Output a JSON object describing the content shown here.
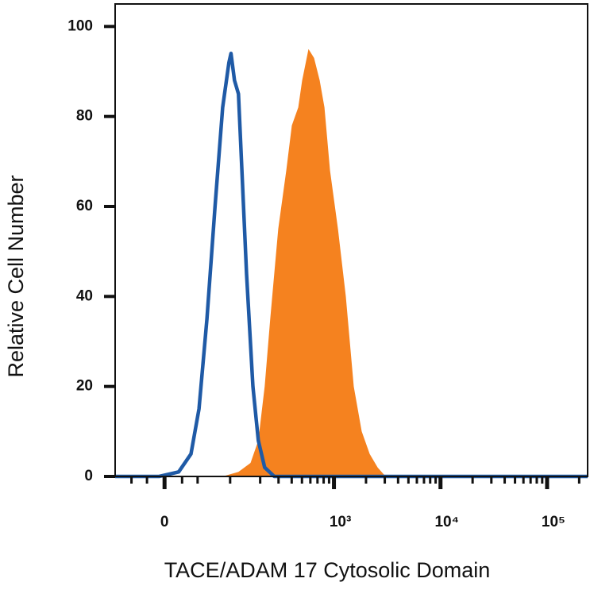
{
  "chart_data": {
    "type": "histogram-overlay",
    "xlabel": "TACE/ADAM 17 Cytosolic Domain",
    "ylabel": "Relative Cell Number",
    "xscale": "biexponential",
    "xlim": [
      -66,
      240000
    ],
    "xticks": [
      0,
      {
        "value": 1000,
        "label": "10³"
      },
      {
        "value": 10000,
        "label": "10⁴"
      },
      {
        "value": 100000,
        "label": "10⁵"
      }
    ],
    "xminorticks": [
      -40,
      -20,
      20,
      40,
      100,
      200,
      300,
      400,
      500,
      600,
      700,
      800,
      900,
      2000,
      3000,
      4000,
      5000,
      6000,
      7000,
      8000,
      9000,
      20000,
      30000,
      40000,
      50000,
      60000,
      70000,
      80000,
      90000,
      200000
    ],
    "ylim": [
      0,
      105
    ],
    "yticks": [
      0,
      20,
      40,
      60,
      80,
      100
    ],
    "series": [
      {
        "style": "area",
        "color": "#f5821f",
        "x": [
          83,
          122,
          161,
          192,
          221,
          250,
          298,
          355,
          401,
          461,
          502,
          576,
          650,
          734,
          814,
          918,
          1090,
          1293,
          1535,
          1823,
          2166,
          2573,
          3056
        ],
        "values": [
          0,
          1,
          3,
          8,
          20,
          35,
          55,
          68,
          78,
          82,
          88,
          95,
          93,
          88,
          82,
          68,
          55,
          40,
          20,
          10,
          5,
          2,
          0
        ]
      },
      {
        "style": "line",
        "color": "#1f5aa6",
        "x": [
          -66,
          -6,
          16,
          31,
          42,
          54,
          68,
          83,
          97,
          102,
          111,
          122,
          134,
          147,
          170,
          192,
          221,
          273,
          240000
        ],
        "values": [
          0,
          0,
          1,
          5,
          15,
          35,
          60,
          82,
          92,
          94,
          88,
          85,
          65,
          45,
          20,
          8,
          2,
          0,
          0
        ]
      }
    ]
  }
}
